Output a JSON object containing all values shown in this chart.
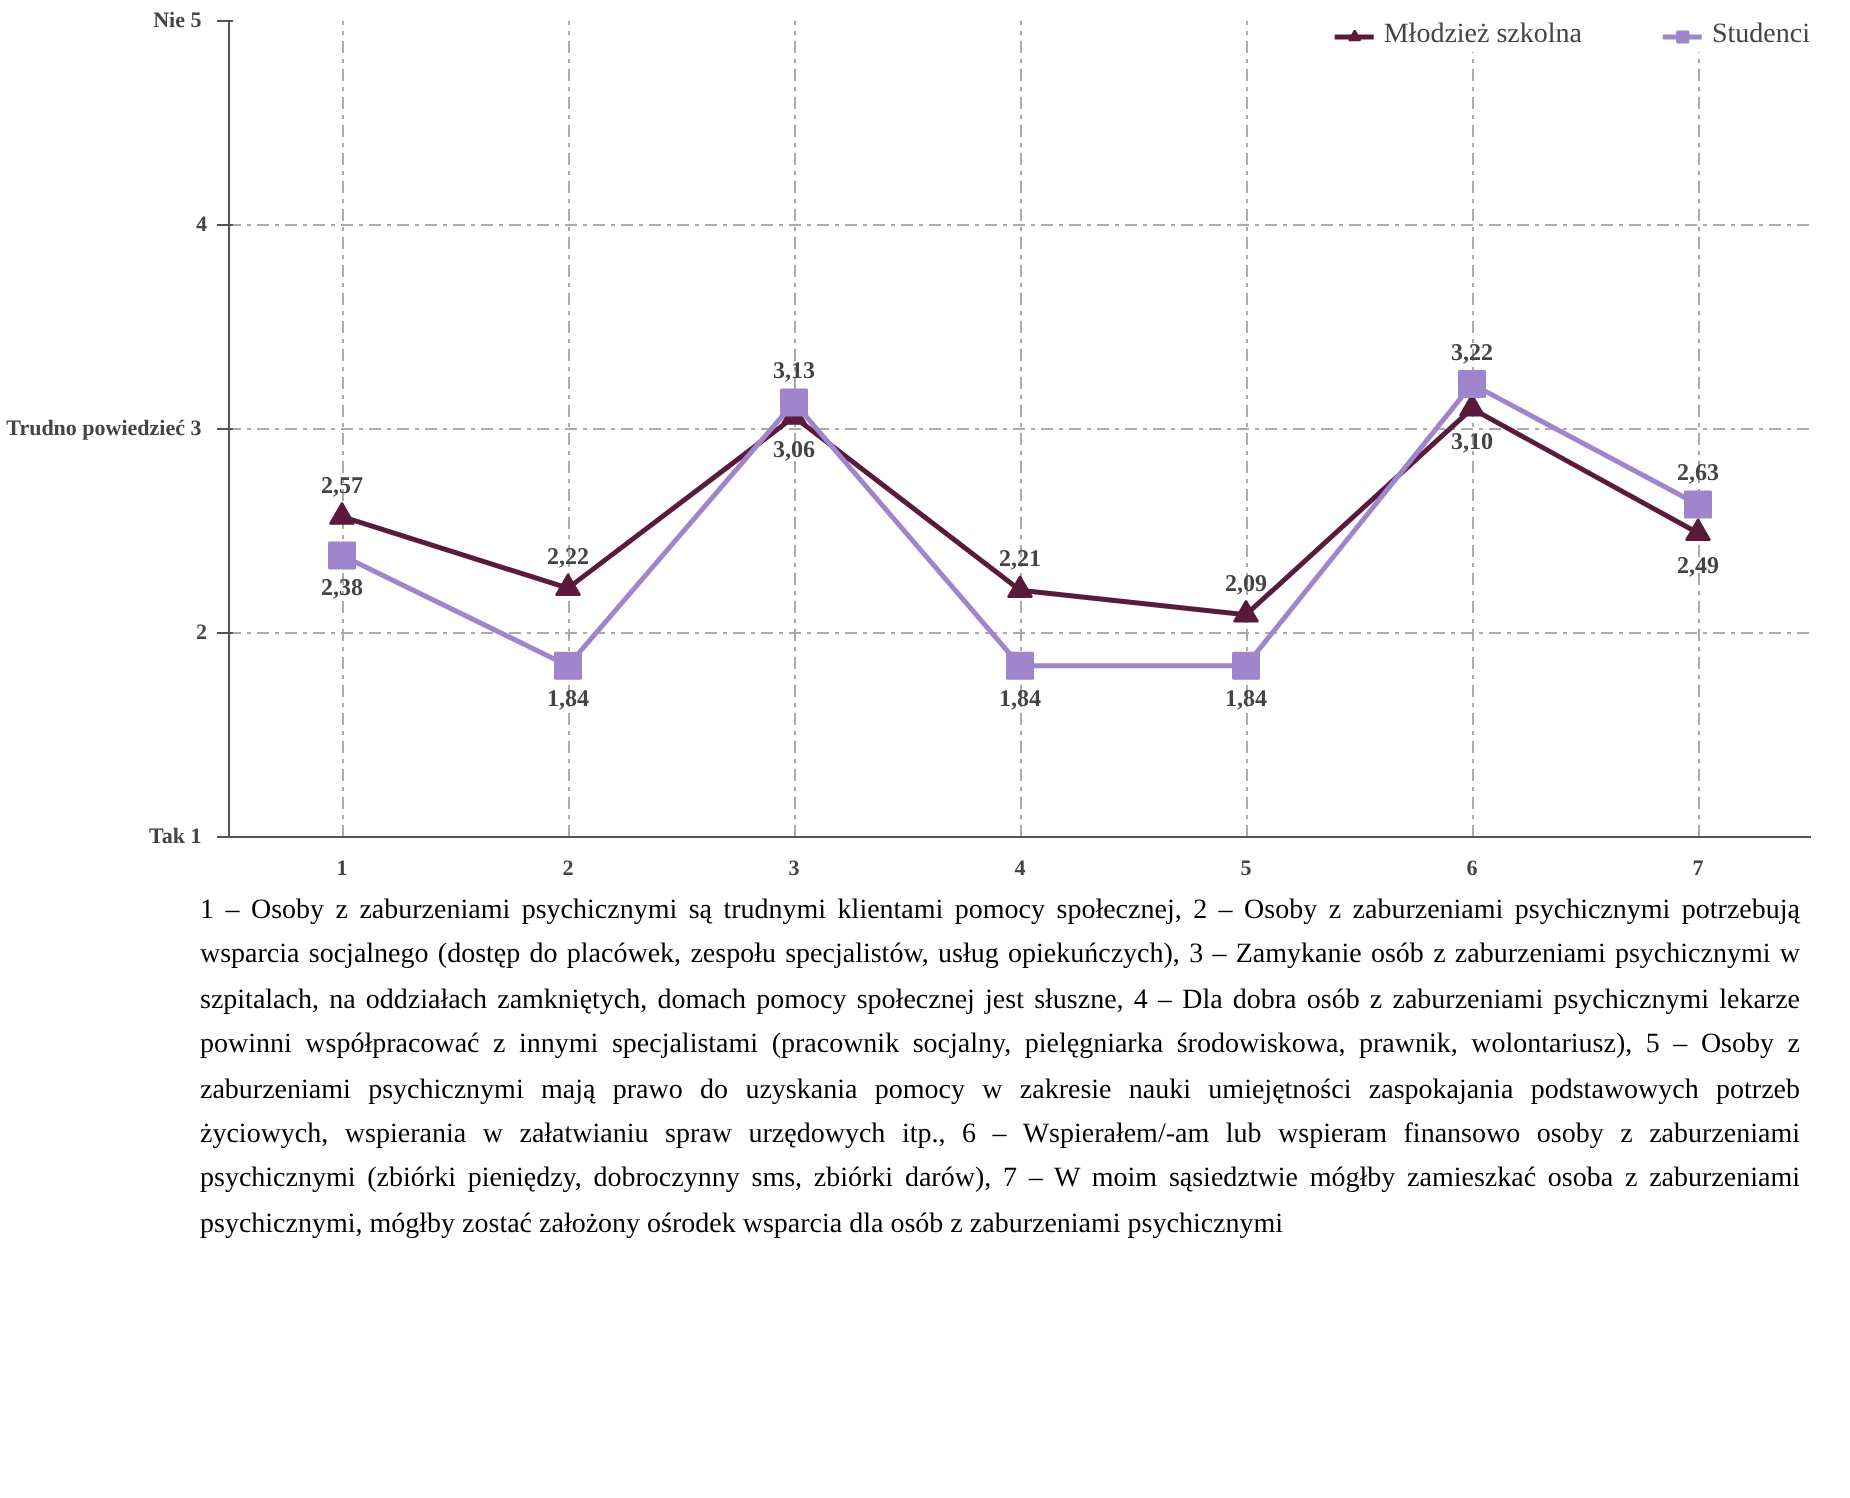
{
  "chart_data": {
    "type": "line",
    "categories": [
      "1",
      "2",
      "3",
      "4",
      "5",
      "6",
      "7"
    ],
    "series": [
      {
        "name": "Młodzież szkolna",
        "color": "#5a1a3c",
        "values": [
          2.57,
          2.22,
          3.06,
          2.21,
          2.09,
          3.1,
          2.49
        ],
        "value_labels": [
          "2,57",
          "2,22",
          "3,06",
          "2,21",
          "2,09",
          "3,10",
          "2,49"
        ],
        "marker": "triangle"
      },
      {
        "name": "Studenci",
        "color": "#9f86cc",
        "values": [
          2.38,
          1.84,
          3.13,
          1.84,
          1.84,
          3.22,
          2.63
        ],
        "value_labels": [
          "2,38",
          "1,84",
          "3,13",
          "1,84",
          "1,84",
          "3,22",
          "2,63"
        ],
        "marker": "square"
      }
    ],
    "ylim": [
      1,
      5
    ],
    "yticks": [
      {
        "value": 1,
        "label": "Tak  1"
      },
      2,
      {
        "value": 3,
        "label": "Trudno powiedzieć  3"
      },
      4,
      {
        "value": 5,
        "label": "Nie  5"
      }
    ],
    "grid": true,
    "legend": "top right",
    "line_style": "solid",
    "annotations": [
      "1 – Osoby z zaburzeniami psychicznymi są trudnymi klientami pomocy społecznej, 2 – Osoby z zaburzeniami psychicznymi potrzebują wsparcia socjalnego (dostęp do placówek, zespołu specjalistów, usług opiekuńczych), 3 – Zamykanie osób z zaburzeniami psychicznymi w szpitalach, na oddziałach zamkniętych, domach pomocy społecznej jest słuszne, 4 – Dla dobra osób z zaburzeniami psychicznymi lekarze powinni współpracować z innymi specjalistami (pracownik socjalny, pielęgniarka środowiskowa, prawnik, wolontariusz), 5 – Osoby z zaburzeniami psychicznymi mają prawo do uzyskania pomocy w zakresie nauki umiejętności zaspokajania podstawowych potrzeb życiowych, wspierania w załatwianiu spraw urzędowych itp., 6 – Wspierałem/-am lub wspieram finansowo osoby z zaburzeniami psychicznymi (zbiórki pieniędzy, dobroczynny sms, zbiórki darów), 7 – W moim sąsiedztwie mógłby zamieszkać osoba z zaburzeniami psychicznymi, mógłby zostać założony ośrodek wsparcia dla osób z zaburzeniami psychicznymi"
    ]
  }
}
